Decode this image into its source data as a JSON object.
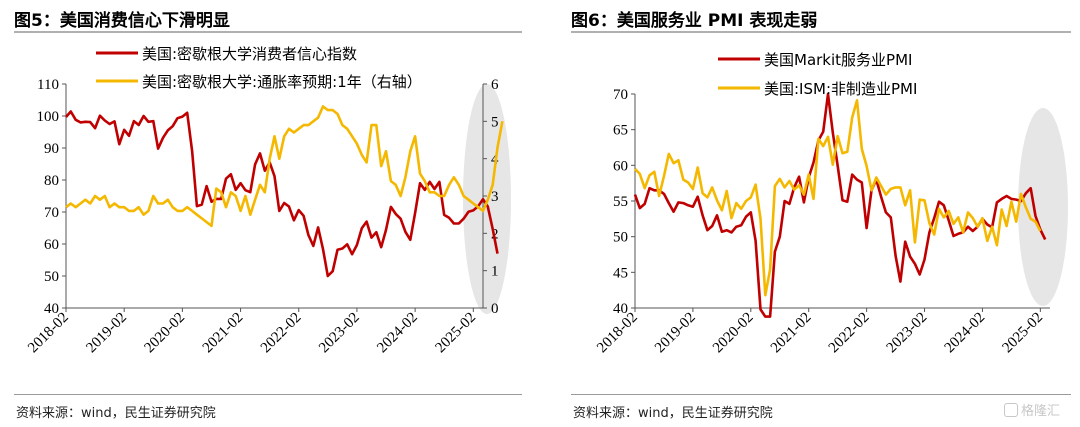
{
  "panels": [
    {
      "title": "图5：美国消费信心下滑明显",
      "source": "资料来源：wind，民生证券研究院"
    },
    {
      "title": "图6：美国服务业 PMI 表现走弱",
      "source": "资料来源：wind，民生证券研究院"
    }
  ],
  "watermark": {
    "text": "格隆汇"
  },
  "chart_data": [
    {
      "type": "line",
      "x_tick_labels": [
        "2018-02",
        "2019-02",
        "2020-02",
        "2021-02",
        "2022-02",
        "2023-02",
        "2024-02",
        "2025-02"
      ],
      "x_start": "2018-02",
      "x_end": "2025-04",
      "ylim_left": [
        40,
        110
      ],
      "yticks_left": [
        40,
        50,
        60,
        70,
        80,
        90,
        100,
        110
      ],
      "ylim_right": [
        0,
        6
      ],
      "yticks_right": [
        0,
        1,
        2,
        3,
        4,
        5,
        6
      ],
      "grid": false,
      "legend": "top-left",
      "highlight": "ellipse over 2024-12 to 2025-04",
      "series": [
        {
          "name": "美国:密歇根大学消费者信心指数",
          "axis": "left",
          "color": "#c00000",
          "values": [
            99.7,
            101.4,
            98.8,
            98.0,
            98.2,
            98.1,
            96.2,
            100.1,
            98.6,
            97.5,
            98.3,
            91.2,
            95.7,
            93.8,
            98.4,
            97.2,
            100.0,
            98.2,
            98.4,
            89.8,
            93.2,
            95.5,
            96.8,
            99.3,
            99.8,
            101.0,
            89.1,
            71.8,
            72.3,
            78.1,
            73.2,
            74.1,
            74.1,
            80.4,
            81.8,
            76.9,
            79.0,
            76.8,
            76.2,
            84.9,
            88.3,
            82.9,
            85.5,
            81.2,
            70.3,
            72.8,
            71.7,
            67.4,
            70.6,
            68.8,
            62.8,
            59.4,
            65.2,
            58.4,
            50.0,
            51.5,
            58.2,
            58.6,
            59.9,
            56.8,
            59.7,
            64.9,
            67.0,
            62.0,
            63.7,
            59.0,
            64.4,
            71.6,
            69.4,
            67.9,
            63.8,
            61.3,
            69.7,
            79.0,
            76.9,
            79.4,
            77.2,
            79.4,
            69.1,
            68.2,
            66.4,
            66.4,
            67.9,
            70.1,
            70.5,
            71.8,
            74.0,
            71.7,
            64.7,
            57.0
          ],
          "start": "2018-02"
        },
        {
          "name": "美国:密歇根大学:通胀率预期:1年（右轴）",
          "axis": "right",
          "color": "#f5b800",
          "values": [
            2.7,
            2.8,
            2.7,
            2.8,
            2.9,
            2.8,
            3.0,
            2.9,
            3.0,
            2.7,
            2.8,
            2.7,
            2.7,
            2.6,
            2.6,
            2.7,
            2.5,
            2.6,
            3.0,
            2.8,
            2.8,
            2.9,
            2.7,
            2.6,
            2.6,
            2.7,
            2.6,
            2.5,
            2.4,
            2.3,
            2.2,
            3.2,
            3.1,
            2.7,
            3.1,
            3.0,
            2.6,
            3.0,
            2.5,
            2.9,
            3.3,
            3.1,
            4.0,
            4.6,
            4.0,
            4.6,
            4.8,
            4.7,
            4.8,
            4.9,
            4.9,
            5.0,
            5.1,
            5.4,
            5.3,
            5.3,
            5.2,
            4.9,
            4.8,
            4.6,
            4.4,
            4.1,
            3.9,
            4.9,
            4.9,
            3.8,
            4.2,
            3.4,
            3.3,
            3.0,
            3.5,
            4.2,
            4.6,
            3.6,
            3.4,
            3.1,
            3.1,
            3.0,
            3.0,
            3.3,
            3.5,
            3.3,
            3.0,
            2.9,
            2.8,
            2.7,
            2.6,
            2.9,
            3.3,
            4.3,
            5.0
          ],
          "start": "2018-02"
        }
      ]
    },
    {
      "type": "line",
      "x_tick_labels": [
        "2018-02",
        "2019-02",
        "2020-02",
        "2021-02",
        "2022-02",
        "2023-02",
        "2024-02",
        "2025-02"
      ],
      "x_start": "2018-02",
      "x_end": "2025-04",
      "ylim": [
        40,
        70
      ],
      "yticks": [
        40,
        45,
        50,
        55,
        60,
        65,
        70
      ],
      "grid": false,
      "legend": "top-center",
      "highlight": "ellipse over 2024-12 to 2025-04",
      "series": [
        {
          "name": "美国Markit服务业PMI",
          "color": "#c00000",
          "values": [
            55.9,
            54.0,
            54.6,
            56.8,
            56.5,
            56.5,
            56.0,
            54.7,
            53.5,
            54.8,
            54.7,
            54.4,
            54.2,
            55.6,
            53.0,
            50.9,
            51.5,
            53.0,
            50.7,
            50.9,
            50.6,
            51.4,
            51.6,
            52.8,
            53.4,
            49.4,
            39.8,
            26.7,
            37.5,
            47.9,
            50.0,
            55.0,
            54.6,
            56.9,
            58.4,
            54.8,
            58.3,
            60.4,
            63.5,
            64.7,
            70.4,
            64.6,
            59.9,
            55.1,
            54.9,
            58.7,
            58.0,
            57.6,
            51.2,
            56.5,
            58.0,
            55.6,
            53.4,
            52.7,
            47.3,
            43.7,
            49.3,
            47.2,
            46.2,
            44.7,
            46.8,
            50.6,
            52.6,
            54.9,
            54.4,
            52.3,
            50.1,
            50.4,
            50.6,
            51.4,
            50.8,
            51.4,
            52.5,
            51.7,
            51.3,
            54.8,
            55.3,
            55.7,
            55.3,
            55.2,
            55.0,
            56.1,
            56.8,
            52.9,
            51.0,
            49.6
          ],
          "start": "2018-02"
        },
        {
          "name": "美国:ISM:非制造业PMI",
          "color": "#f5b800",
          "values": [
            59.5,
            58.8,
            56.8,
            58.6,
            59.1,
            55.7,
            58.5,
            61.6,
            60.3,
            60.7,
            58.0,
            57.6,
            56.7,
            59.7,
            56.1,
            55.5,
            56.9,
            55.1,
            53.7,
            56.4,
            52.6,
            54.7,
            53.9,
            55.0,
            55.5,
            57.3,
            52.5,
            41.8,
            45.4,
            57.1,
            58.1,
            56.9,
            57.8,
            56.6,
            57.2,
            55.9,
            58.7,
            55.3,
            63.7,
            62.7,
            64.0,
            60.1,
            64.1,
            61.7,
            61.9,
            66.7,
            69.1,
            62.3,
            59.9,
            56.5,
            58.3,
            57.1,
            55.9,
            56.7,
            56.9,
            56.9,
            54.4,
            56.5,
            49.2,
            55.2,
            55.1,
            51.9,
            50.3,
            53.9,
            52.7,
            53.6,
            51.8,
            52.7,
            50.6,
            53.4,
            52.6,
            51.4,
            52.6,
            49.4,
            51.4,
            48.8,
            53.8,
            51.5,
            54.9,
            52.1,
            56.0,
            54.1,
            52.5,
            52.1,
            50.8
          ],
          "start": "2018-02"
        }
      ]
    }
  ]
}
